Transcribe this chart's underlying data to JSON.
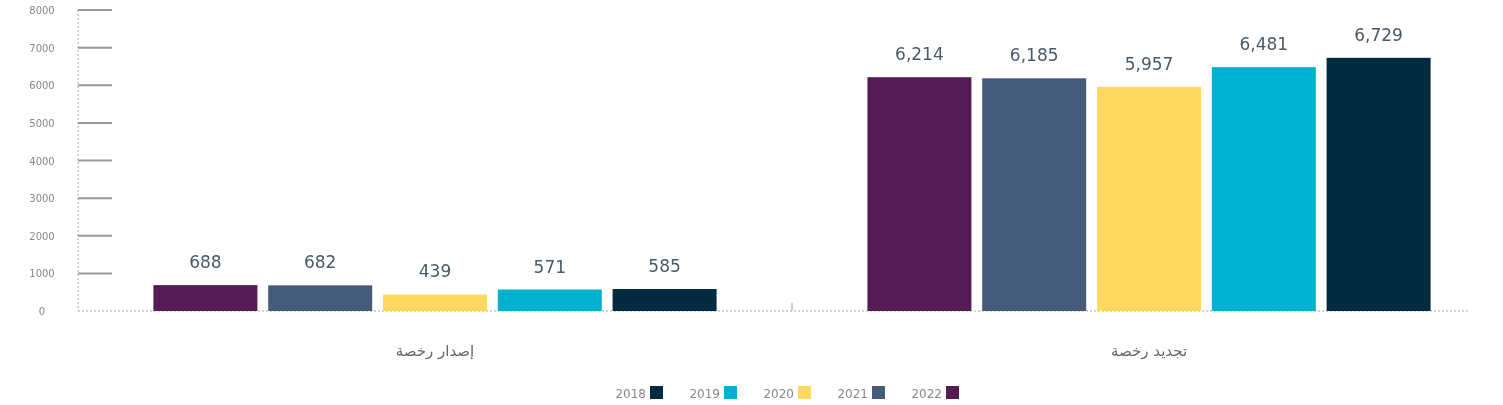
{
  "chart_data": {
    "type": "bar",
    "categories": [
      "إصدار رخصة",
      "تجديد رخصة"
    ],
    "series": [
      {
        "name": "2018",
        "color": "#022b42",
        "values": [
          585,
          6729
        ],
        "value_labels": [
          "585",
          "6,729"
        ]
      },
      {
        "name": "2019",
        "color": "#00b1d0",
        "values": [
          571,
          6481
        ],
        "value_labels": [
          "571",
          "6,481"
        ]
      },
      {
        "name": "2020",
        "color": "#ffd95f",
        "values": [
          439,
          5957
        ],
        "value_labels": [
          "439",
          "5,957"
        ]
      },
      {
        "name": "2021",
        "color": "#465b7a",
        "values": [
          682,
          6185
        ],
        "value_labels": [
          "682",
          "6,185"
        ]
      },
      {
        "name": "2022",
        "color": "#541c55",
        "values": [
          688,
          6214
        ],
        "value_labels": [
          "688",
          "6,214"
        ]
      }
    ],
    "ylim": [
      0,
      8000
    ],
    "yticks": [
      0,
      1000,
      2000,
      3000,
      4000,
      5000,
      6000,
      7000,
      8000
    ],
    "legend": "bottom",
    "grid": false
  }
}
